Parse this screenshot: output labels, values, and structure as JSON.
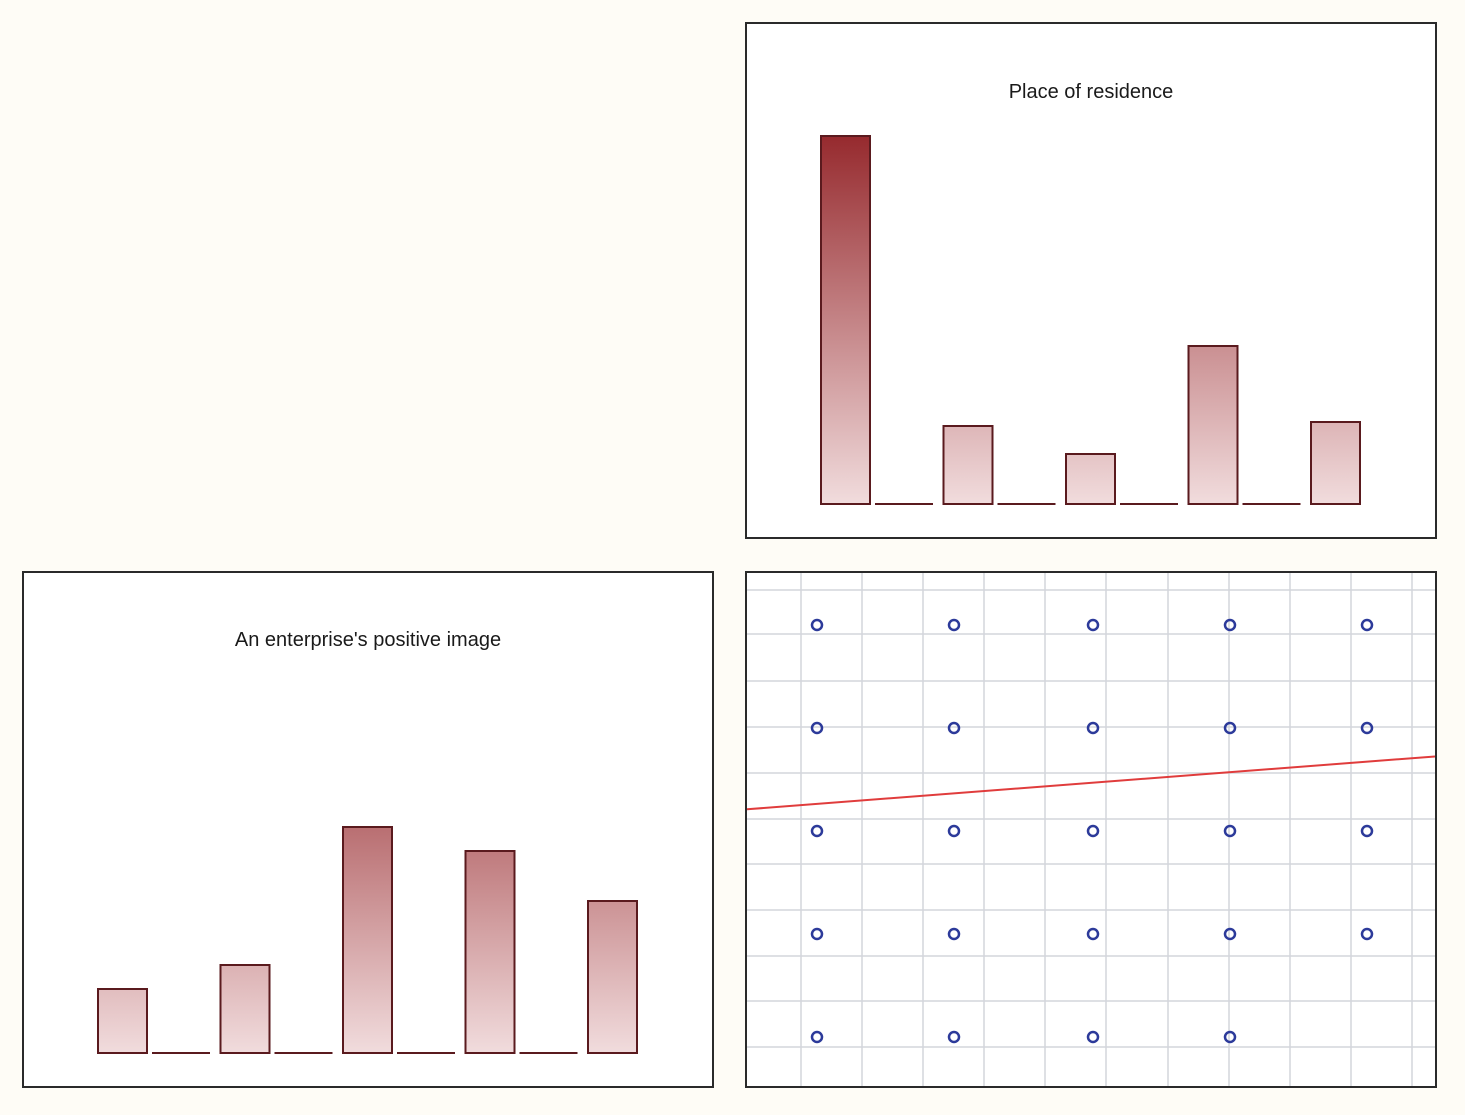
{
  "chart_data": [
    {
      "type": "bar",
      "title": "Place of residence",
      "categories": [
        "",
        "",
        "",
        "",
        ""
      ],
      "values": [
        92,
        19.5,
        12.5,
        39.5,
        20.5
      ],
      "ylim": [
        0,
        100
      ],
      "colors": {
        "top": "#962a2e",
        "bottom": "#f1dcdd",
        "edge": "#5a1a1e"
      }
    },
    {
      "type": "bar",
      "title": "An enterprise's positive image",
      "categories": [
        "",
        "",
        "",
        "",
        ""
      ],
      "values": [
        16,
        22,
        56.5,
        50.5,
        38
      ],
      "ylim": [
        0,
        100
      ],
      "colors": {
        "top": "#962a2e",
        "bottom": "#f1dcdd",
        "edge": "#5a1a1e"
      }
    },
    {
      "type": "scatter",
      "x": [
        1,
        2,
        3,
        4,
        5
      ],
      "y_levels": [
        1,
        2,
        3,
        4,
        5
      ],
      "points": [
        [
          1,
          5
        ],
        [
          2,
          5
        ],
        [
          3,
          5
        ],
        [
          4,
          5
        ],
        [
          5,
          5
        ],
        [
          1,
          4
        ],
        [
          2,
          4
        ],
        [
          3,
          4
        ],
        [
          4,
          4
        ],
        [
          5,
          4
        ],
        [
          1,
          3
        ],
        [
          2,
          3
        ],
        [
          3,
          3
        ],
        [
          4,
          3
        ],
        [
          5,
          3
        ],
        [
          1,
          2
        ],
        [
          2,
          2
        ],
        [
          3,
          2
        ],
        [
          4,
          2
        ],
        [
          5,
          2
        ],
        [
          1,
          1
        ],
        [
          2,
          1
        ],
        [
          3,
          1
        ],
        [
          4,
          1
        ]
      ],
      "xlim": [
        0.5,
        5.5
      ],
      "ylim": [
        0.6,
        5.55
      ],
      "trend_line": {
        "x": [
          0.5,
          5.5
        ],
        "y": [
          3.27,
          3.78
        ]
      },
      "grid": true,
      "colors": {
        "points": "#2c3a9a",
        "trend": "#e03c3c",
        "grid": "#d4d6dc"
      }
    }
  ]
}
